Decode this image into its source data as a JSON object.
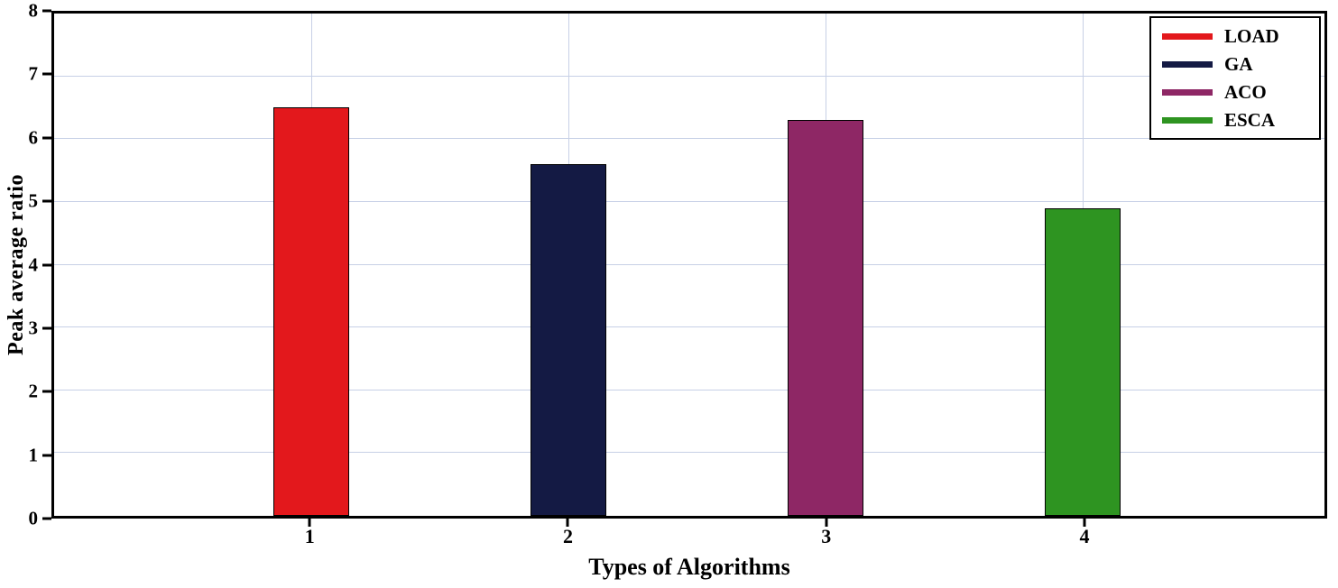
{
  "chart_data": {
    "type": "bar",
    "title": "",
    "xlabel": "Types of Algorithms",
    "ylabel": "Peak average ratio",
    "categories": [
      "1",
      "2",
      "3",
      "4"
    ],
    "series": [
      {
        "name": "LOAD",
        "category": "1",
        "value": 6.5,
        "color": "#e3181c"
      },
      {
        "name": "GA",
        "category": "2",
        "value": 5.6,
        "color": "#141a44"
      },
      {
        "name": "ACO",
        "category": "3",
        "value": 6.3,
        "color": "#8e2765"
      },
      {
        "name": "ESCA",
        "category": "4",
        "value": 4.9,
        "color": "#2e9421"
      }
    ],
    "ylim": [
      0,
      8
    ],
    "yticks": [
      0,
      1,
      2,
      3,
      4,
      5,
      6,
      7,
      8
    ],
    "grid": true,
    "legend_position": "top-right",
    "legend": [
      "LOAD",
      "GA",
      "ACO",
      "ESCA"
    ]
  },
  "style": {
    "grid_color": "#c7d0e6",
    "axis_color": "#000000",
    "background": "#ffffff"
  }
}
